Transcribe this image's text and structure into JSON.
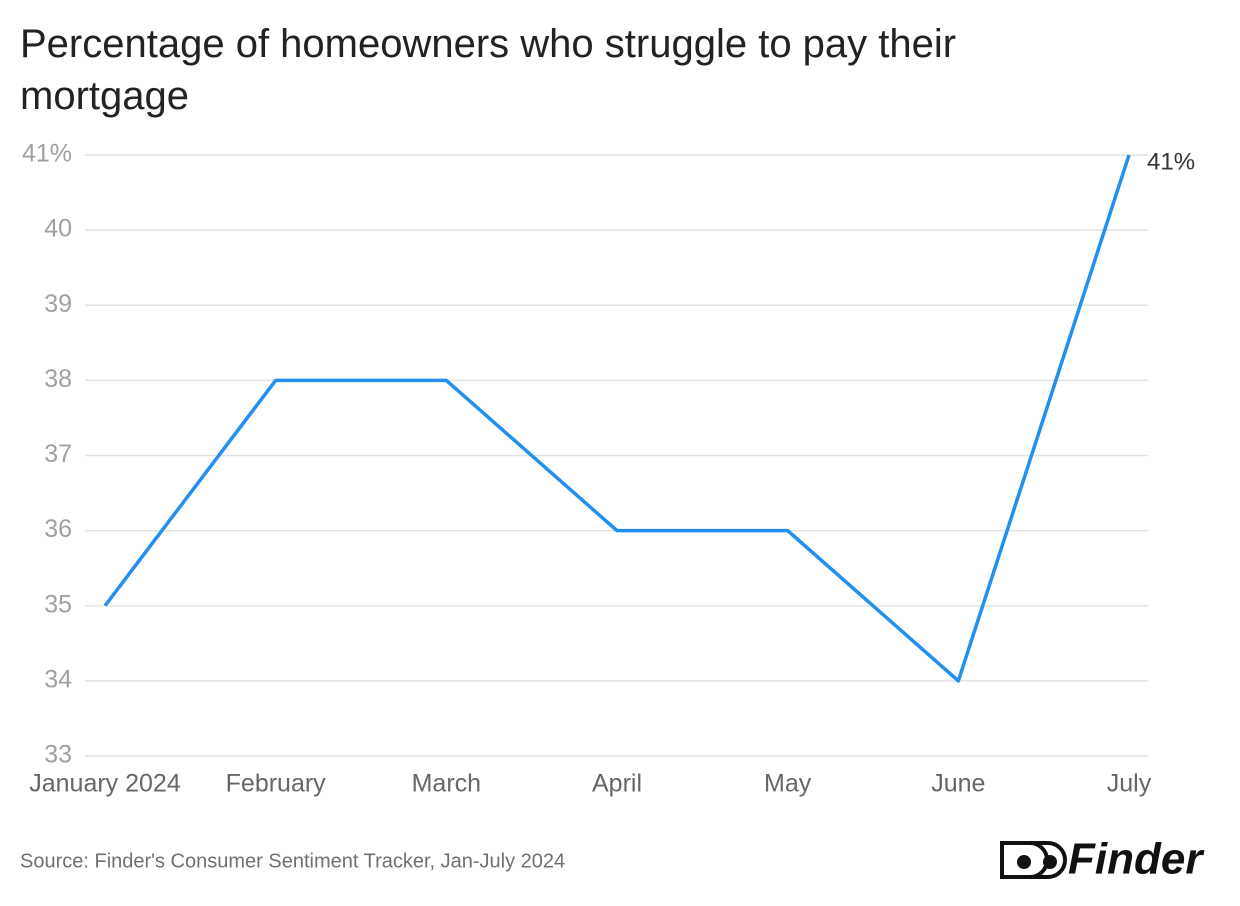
{
  "chart_data": {
    "type": "line",
    "title": "Percentage of homeowners who struggle to pay their mortgage",
    "categories": [
      "January 2024",
      "February",
      "March",
      "April",
      "May",
      "June",
      "July"
    ],
    "values": [
      35,
      38,
      38,
      36,
      36,
      34,
      41
    ],
    "value_labels": [
      null,
      null,
      null,
      null,
      null,
      null,
      "41%"
    ],
    "color": "#2290f0",
    "ylim": [
      33,
      41
    ],
    "yticks": [
      33,
      34,
      35,
      36,
      37,
      38,
      39,
      40,
      {
        "value": 41,
        "label": "41%"
      }
    ],
    "grid": true,
    "source": "Source: Finder's Consumer Sentiment Tracker, Jan-July 2024",
    "logo": "Finder"
  }
}
